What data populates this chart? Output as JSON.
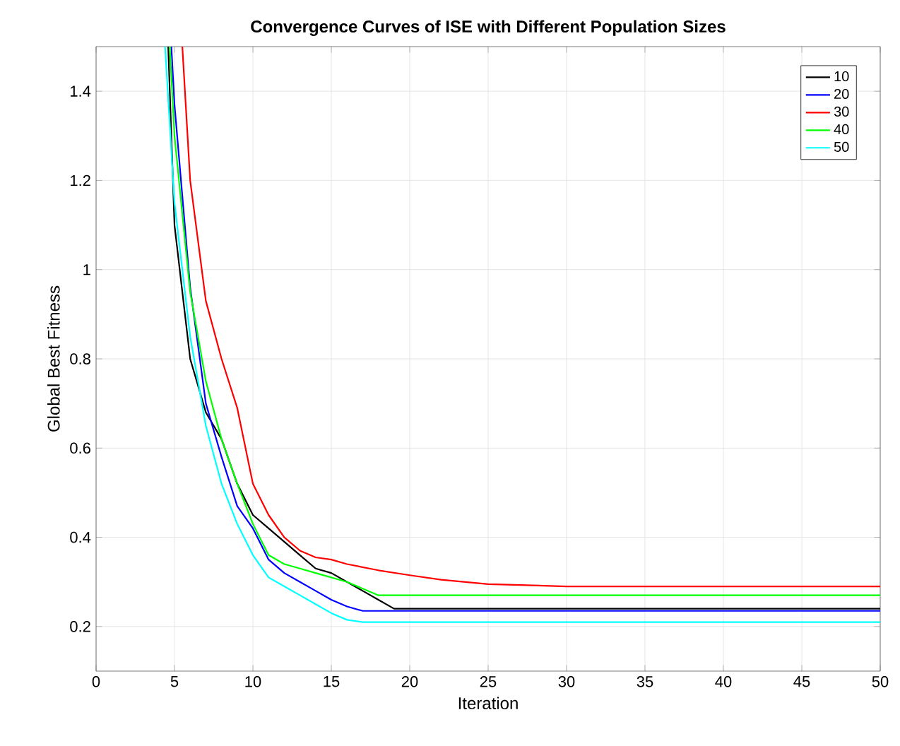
{
  "chart_data": {
    "type": "line",
    "title": "Convergence Curves of ISE with Different Population Sizes",
    "xlabel": "Iteration",
    "ylabel": "Global Best Fitness",
    "xlim": [
      0,
      50
    ],
    "ylim": [
      0.1,
      1.5
    ],
    "xticks": [
      0,
      5,
      10,
      15,
      20,
      25,
      30,
      35,
      40,
      45,
      50
    ],
    "yticks": [
      0.2,
      0.4,
      0.6,
      0.8,
      1,
      1.2,
      1.4
    ],
    "grid": true,
    "legend": "top right",
    "line_style": "solid",
    "marker": "none",
    "series": [
      {
        "name": "10",
        "color": "#000000",
        "x": [
          4.6,
          5,
          6,
          7,
          8,
          9,
          10,
          11,
          12,
          13,
          14,
          15,
          16,
          17,
          18,
          19,
          50
        ],
        "values": [
          1.5,
          1.1,
          0.8,
          0.68,
          0.62,
          0.52,
          0.45,
          0.42,
          0.39,
          0.36,
          0.33,
          0.32,
          0.3,
          0.28,
          0.26,
          0.24,
          0.24
        ]
      },
      {
        "name": "20",
        "color": "#0000ff",
        "x": [
          4.8,
          5,
          6,
          7,
          8,
          9,
          10,
          11,
          12,
          13,
          14,
          15,
          16,
          17,
          50
        ],
        "values": [
          1.5,
          1.37,
          0.96,
          0.7,
          0.58,
          0.47,
          0.42,
          0.35,
          0.32,
          0.3,
          0.28,
          0.26,
          0.245,
          0.235,
          0.235
        ]
      },
      {
        "name": "30",
        "color": "#ff0000",
        "x": [
          5.5,
          6,
          7,
          8,
          9,
          10,
          11,
          12,
          13,
          14,
          15,
          16,
          18,
          20,
          22,
          25,
          30,
          50
        ],
        "values": [
          1.5,
          1.2,
          0.93,
          0.8,
          0.69,
          0.52,
          0.45,
          0.4,
          0.37,
          0.355,
          0.35,
          0.34,
          0.326,
          0.315,
          0.305,
          0.295,
          0.29,
          0.29
        ]
      },
      {
        "name": "40",
        "color": "#00ff00",
        "x": [
          4.7,
          5,
          6,
          7,
          8,
          9,
          10,
          11,
          12,
          13,
          14,
          15,
          16,
          17,
          18,
          50
        ],
        "values": [
          1.5,
          1.3,
          0.95,
          0.75,
          0.62,
          0.52,
          0.43,
          0.36,
          0.34,
          0.33,
          0.32,
          0.31,
          0.3,
          0.285,
          0.27,
          0.27
        ]
      },
      {
        "name": "50",
        "color": "#00ffff",
        "x": [
          4.4,
          5,
          6,
          7,
          8,
          9,
          10,
          11,
          12,
          13,
          14,
          15,
          16,
          17,
          50
        ],
        "values": [
          1.5,
          1.15,
          0.85,
          0.65,
          0.52,
          0.43,
          0.36,
          0.31,
          0.29,
          0.27,
          0.25,
          0.23,
          0.215,
          0.21,
          0.21
        ]
      }
    ]
  }
}
